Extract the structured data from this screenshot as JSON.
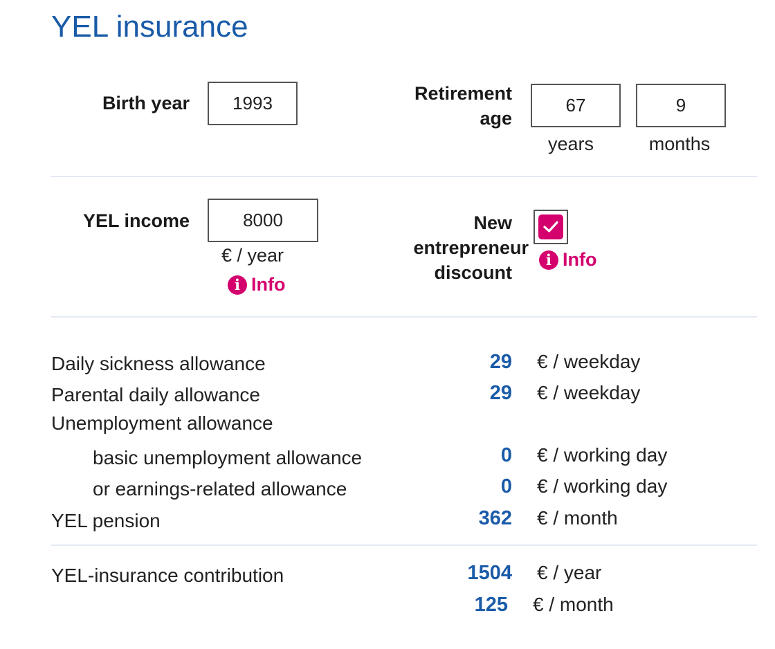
{
  "title": "YEL insurance",
  "birth_year": {
    "label": "Birth year",
    "value": "1993"
  },
  "retirement_age": {
    "label_line1": "Retirement",
    "label_line2": "age",
    "years_value": "67",
    "months_value": "9",
    "years_unit": "years",
    "months_unit": "months"
  },
  "income": {
    "label": "YEL income",
    "value": "8000",
    "unit": "€ / year",
    "info_label": "Info"
  },
  "discount": {
    "label_line1": "New",
    "label_line2": "entrepreneur",
    "label_line3": "discount",
    "checked": true,
    "info_label": "Info"
  },
  "info_icon_glyph": "i",
  "accent_color": "#d4006e",
  "value_color": "#1a5ba8",
  "results": {
    "daily_sickness": {
      "label": "Daily sickness allowance",
      "value": "29",
      "unit": "€ / weekday"
    },
    "parental_daily": {
      "label": "Parental daily allowance",
      "value": "29",
      "unit": "€ / weekday"
    },
    "unemployment_heading": "Unemployment allowance",
    "basic_unemployment": {
      "label": "basic unemployment allowance",
      "value": "0",
      "unit": "€ / working day"
    },
    "earnings_related": {
      "label": "or earnings-related allowance",
      "value": "0",
      "unit": "€ / working day"
    },
    "pension": {
      "label": "YEL pension",
      "value": "362",
      "unit": "€ / month"
    }
  },
  "contribution": {
    "label": "YEL-insurance contribution",
    "year_value": "1504",
    "year_unit": "€ / year",
    "month_value": "125",
    "month_unit": "€ / month"
  }
}
